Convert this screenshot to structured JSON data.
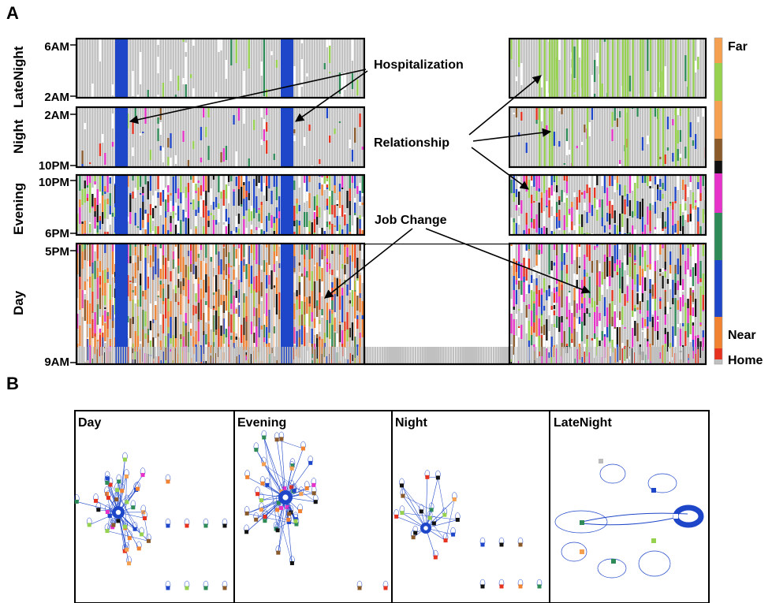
{
  "panels": {
    "a": "A",
    "b": "B"
  },
  "raster": {
    "bands": [
      {
        "name": "LateNight",
        "top": "6AM",
        "bottom": "2AM"
      },
      {
        "name": "Night",
        "top": "2AM",
        "bottom": "10PM"
      },
      {
        "name": "Evening",
        "top": "10PM",
        "bottom": "6PM"
      },
      {
        "name": "Day",
        "top": "5PM",
        "bottom": "9AM"
      }
    ],
    "annotations": {
      "hospitalization": "Hospitalization",
      "relationship": "Relationship",
      "job_change": "Job Change"
    },
    "colorbar": {
      "far": "Far",
      "near": "Near",
      "home": "Home"
    },
    "colors": {
      "home": "#c0c0c0",
      "near_red": "#e6321e",
      "near_orange": "#f08232",
      "blue": "#1e46c8",
      "green": "#2e8b57",
      "magenta": "#e632c8",
      "black": "#111111",
      "brown": "#8b5a2b",
      "lightgreen": "#96d250",
      "peach": "#f5a050",
      "white": "#ffffff"
    }
  },
  "networks": [
    {
      "name": "Day"
    },
    {
      "name": "Evening"
    },
    {
      "name": "Night"
    },
    {
      "name": "LateNight"
    }
  ],
  "chart_data": {
    "type": "heatmap",
    "description_free": true,
    "y_bands": [
      "LateNight",
      "Night",
      "Evening",
      "Day"
    ],
    "y_ticks": [
      "6AM",
      "2AM",
      "2AM",
      "10PM",
      "10PM",
      "6PM",
      "5PM",
      "9AM"
    ],
    "colorbar_labels": [
      "Far",
      "Near",
      "Home"
    ],
    "annotations": [
      "Hospitalization",
      "Relationship",
      "Job Change"
    ],
    "network_panels": [
      "Day",
      "Evening",
      "Night",
      "LateNight"
    ]
  }
}
